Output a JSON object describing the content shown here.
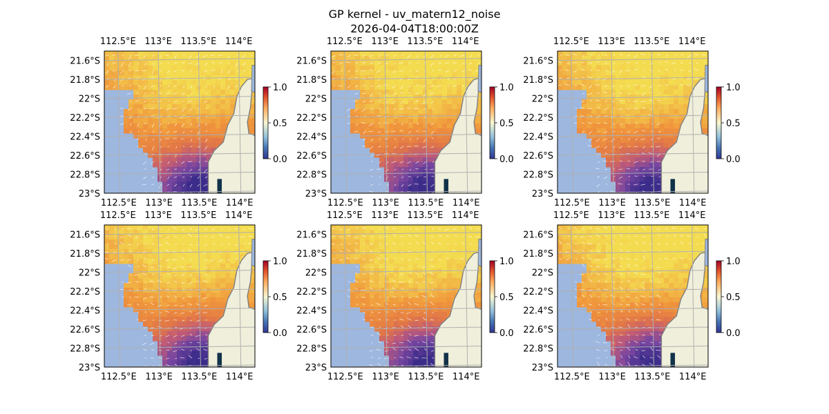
{
  "figure": {
    "title_line1": "GP kernel - uv_matern12_noise",
    "title_line2": "2026-04-04T18:00:00Z"
  },
  "colors": {
    "land": "#efefdb",
    "no_data": "#9db7df",
    "coast": "#7f7f7f",
    "grid": "#b0b0b0",
    "arrows": "#ffffff"
  },
  "chart_data": {
    "type": "heatmap",
    "panel_count": 6,
    "layout": "2 rows x 3 columns",
    "x_ticks": [
      "112.5°E",
      "113°E",
      "113.5°E",
      "114°E"
    ],
    "y_ticks": [
      "21.6°S",
      "21.8°S",
      "22°S",
      "22.2°S",
      "22.4°S",
      "22.6°S",
      "22.8°S",
      "23°S"
    ],
    "colorbar": {
      "ticks": [
        "0.0",
        "0.5",
        "1.0"
      ],
      "range": [
        0,
        1
      ],
      "colormap": "blue-white-red"
    },
    "field_colormap": "plasma-like (purple-orange-yellow)",
    "overlay": "velocity arrows (quiver)",
    "panels": [
      {
        "row": 1,
        "col": 1,
        "variant": 0
      },
      {
        "row": 1,
        "col": 2,
        "variant": 1
      },
      {
        "row": 1,
        "col": 3,
        "variant": 2
      },
      {
        "row": 2,
        "col": 1,
        "variant": 3
      },
      {
        "row": 2,
        "col": 2,
        "variant": 4
      },
      {
        "row": 2,
        "col": 3,
        "variant": 5
      }
    ]
  }
}
